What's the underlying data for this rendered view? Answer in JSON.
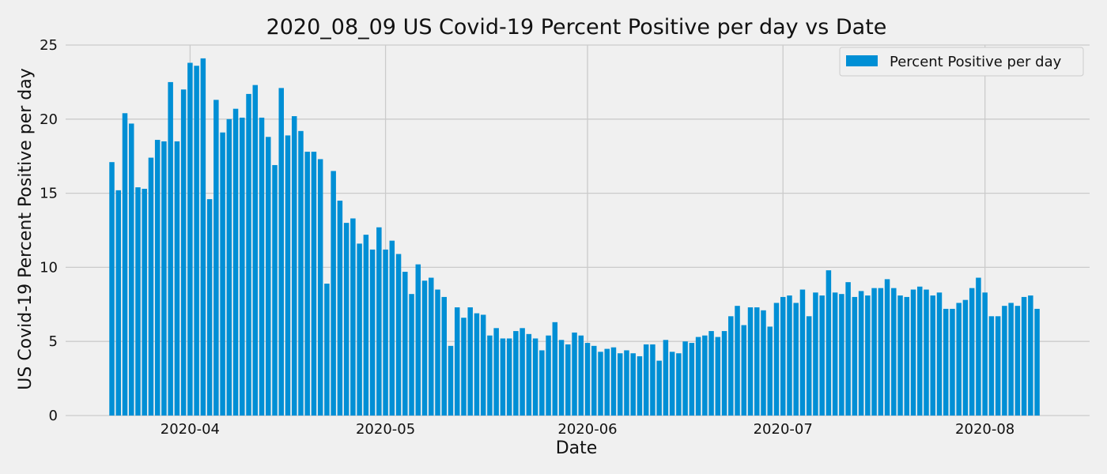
{
  "chart_data": {
    "type": "bar",
    "title": "2020_08_09  US Covid-19 Percent Positive per day vs Date",
    "xlabel": "Date",
    "ylabel": "US Covid-19 Percent Positive per day",
    "ylim": [
      0,
      25
    ],
    "yticks": [
      0,
      5,
      10,
      15,
      20,
      25
    ],
    "xticks": [
      "2020-04-01",
      "2020-05-01",
      "2020-06-01",
      "2020-07-01",
      "2020-08-01"
    ],
    "xtick_labels": [
      "2020-04",
      "2020-05",
      "2020-06",
      "2020-07",
      "2020-08"
    ],
    "start_date": "2020-03-20",
    "end_date": "2020-08-08",
    "grid": true,
    "legend_position": "top-right",
    "bar_color": "#008fd5",
    "background_color": "#f0f0f0",
    "series": [
      {
        "name": "Percent Positive per day",
        "values": [
          17.1,
          15.2,
          20.4,
          19.7,
          15.4,
          15.3,
          17.4,
          18.6,
          18.5,
          22.5,
          18.5,
          22.0,
          23.8,
          23.6,
          24.1,
          14.6,
          21.3,
          19.1,
          20.0,
          20.7,
          20.1,
          21.7,
          22.3,
          20.1,
          18.8,
          16.9,
          22.1,
          18.9,
          20.2,
          19.2,
          17.8,
          17.8,
          17.3,
          8.9,
          16.5,
          14.5,
          13.0,
          13.3,
          11.6,
          12.2,
          11.2,
          12.7,
          11.2,
          11.8,
          10.9,
          9.7,
          8.2,
          10.2,
          9.1,
          9.3,
          8.5,
          8.0,
          4.7,
          7.3,
          6.6,
          7.3,
          6.9,
          6.8,
          5.4,
          5.9,
          5.2,
          5.2,
          5.7,
          5.9,
          5.5,
          5.2,
          4.4,
          5.4,
          6.3,
          5.1,
          4.8,
          5.6,
          5.4,
          4.9,
          4.7,
          4.3,
          4.5,
          4.6,
          4.2,
          4.4,
          4.2,
          4.0,
          4.8,
          4.8,
          3.7,
          5.1,
          4.3,
          4.2,
          5.0,
          4.9,
          5.3,
          5.4,
          5.7,
          5.3,
          5.7,
          6.7,
          7.4,
          6.1,
          7.3,
          7.3,
          7.1,
          6.0,
          7.6,
          8.0,
          8.1,
          7.6,
          8.5,
          6.7,
          8.3,
          8.1,
          9.8,
          8.3,
          8.2,
          9.0,
          8.0,
          8.4,
          8.1,
          8.6,
          8.6,
          9.2,
          8.6,
          8.1,
          8.0,
          8.5,
          8.7,
          8.5,
          8.1,
          8.3,
          7.2,
          7.2,
          7.6,
          7.8,
          8.6,
          9.3,
          8.3,
          6.7,
          6.7,
          7.4,
          7.6,
          7.4,
          8.0,
          8.1,
          7.2
        ]
      }
    ]
  }
}
